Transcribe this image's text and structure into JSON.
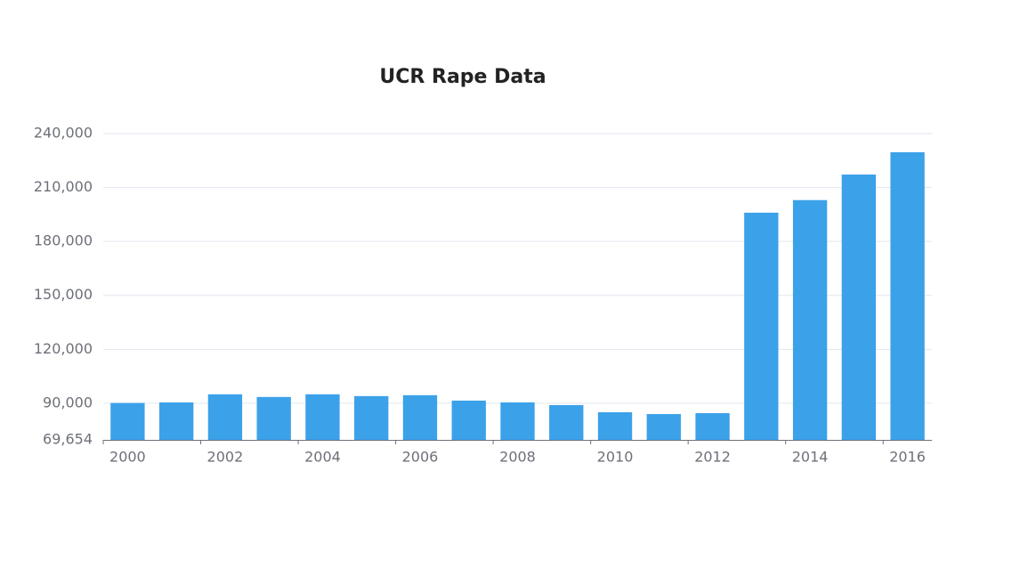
{
  "chart_data": {
    "type": "bar",
    "title": "UCR Rape Data",
    "categories": [
      "2000",
      null,
      "2002",
      null,
      "2004",
      null,
      "2006",
      null,
      "2008",
      null,
      "2010",
      null,
      "2012",
      null,
      "2014",
      null,
      "2016"
    ],
    "values": [
      90200,
      90500,
      95000,
      93500,
      95000,
      94000,
      94500,
      91500,
      90500,
      89000,
      85000,
      84000,
      84500,
      196000,
      203000,
      217200,
      229600
    ],
    "color": "#3ba1e9",
    "ylim": [
      69654,
      240000
    ],
    "yticks": [
      {
        "value": 69654,
        "label": "69,654"
      },
      {
        "value": 90000,
        "label": "90,000"
      },
      {
        "value": 120000,
        "label": "120,000"
      },
      {
        "value": 150000,
        "label": "150,000"
      },
      {
        "value": 180000,
        "label": "180,000"
      },
      {
        "value": 210000,
        "label": "210,000"
      },
      {
        "value": 240000,
        "label": "240,000"
      }
    ],
    "grid": true
  }
}
